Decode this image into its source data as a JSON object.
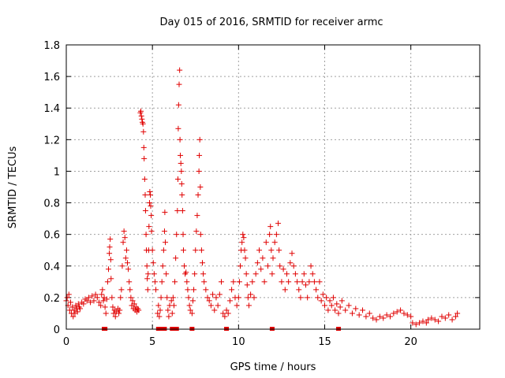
{
  "chart_data": {
    "type": "scatter",
    "title": "Day 015 of 2016, SRMTID for receiver armc",
    "xlabel": "GPS time / hours",
    "ylabel": "SRMTID / TECUs",
    "xlim": [
      0,
      24
    ],
    "ylim": [
      0,
      1.8
    ],
    "x_ticks": [
      "0",
      "5",
      "10",
      "15",
      "20"
    ],
    "y_ticks": [
      "0",
      "0.2",
      "0.4",
      "0.6",
      "0.8",
      "1",
      "1.2",
      "1.4",
      "1.6",
      "1.8"
    ],
    "grid": true,
    "marker": "+",
    "marker_color": "#e00000",
    "series": [
      {
        "name": "SRMTID",
        "points": [
          [
            0.0,
            0.18
          ],
          [
            0.05,
            0.2
          ],
          [
            0.1,
            0.15
          ],
          [
            0.15,
            0.22
          ],
          [
            0.2,
            0.12
          ],
          [
            0.25,
            0.17
          ],
          [
            0.3,
            0.1
          ],
          [
            0.35,
            0.14
          ],
          [
            0.4,
            0.08
          ],
          [
            0.45,
            0.12
          ],
          [
            0.5,
            0.1
          ],
          [
            0.55,
            0.15
          ],
          [
            0.6,
            0.13
          ],
          [
            0.65,
            0.11
          ],
          [
            0.7,
            0.16
          ],
          [
            0.75,
            0.14
          ],
          [
            0.8,
            0.13
          ],
          [
            0.9,
            0.17
          ],
          [
            1.0,
            0.16
          ],
          [
            1.1,
            0.19
          ],
          [
            1.2,
            0.18
          ],
          [
            1.3,
            0.2
          ],
          [
            1.4,
            0.17
          ],
          [
            1.5,
            0.21
          ],
          [
            1.6,
            0.18
          ],
          [
            1.7,
            0.22
          ],
          [
            1.8,
            0.2
          ],
          [
            1.9,
            0.17
          ],
          [
            2.0,
            0.15
          ],
          [
            2.05,
            0.22
          ],
          [
            2.1,
            0.25
          ],
          [
            2.15,
            0.18
          ],
          [
            2.2,
            0.2
          ],
          [
            2.25,
            0.14
          ],
          [
            2.3,
            0.1
          ],
          [
            2.35,
            0.19
          ],
          [
            2.4,
            0.3
          ],
          [
            2.45,
            0.38
          ],
          [
            2.5,
            0.48
          ],
          [
            2.52,
            0.52
          ],
          [
            2.55,
            0.57
          ],
          [
            2.58,
            0.44
          ],
          [
            2.6,
            0.32
          ],
          [
            2.65,
            0.2
          ],
          [
            2.7,
            0.14
          ],
          [
            2.75,
            0.1
          ],
          [
            2.8,
            0.12
          ],
          [
            2.85,
            0.08
          ],
          [
            2.9,
            0.11
          ],
          [
            3.0,
            0.13
          ],
          [
            3.05,
            0.1
          ],
          [
            3.1,
            0.12
          ],
          [
            3.15,
            0.2
          ],
          [
            3.2,
            0.25
          ],
          [
            3.25,
            0.4
          ],
          [
            3.3,
            0.55
          ],
          [
            3.35,
            0.62
          ],
          [
            3.4,
            0.58
          ],
          [
            3.45,
            0.45
          ],
          [
            3.5,
            0.5
          ],
          [
            3.55,
            0.42
          ],
          [
            3.6,
            0.38
          ],
          [
            3.65,
            0.3
          ],
          [
            3.7,
            0.25
          ],
          [
            3.75,
            0.2
          ],
          [
            3.8,
            0.15
          ],
          [
            3.85,
            0.18
          ],
          [
            3.9,
            0.13
          ],
          [
            3.95,
            0.16
          ],
          [
            4.0,
            0.12
          ],
          [
            4.05,
            0.14
          ],
          [
            4.1,
            0.11
          ],
          [
            4.15,
            0.13
          ],
          [
            4.2,
            0.12
          ],
          [
            4.3,
            1.37
          ],
          [
            4.33,
            1.38
          ],
          [
            4.36,
            1.35
          ],
          [
            4.39,
            1.33
          ],
          [
            4.42,
            1.31
          ],
          [
            4.45,
            1.3
          ],
          [
            4.48,
            1.25
          ],
          [
            4.5,
            1.15
          ],
          [
            4.52,
            1.08
          ],
          [
            4.55,
            0.95
          ],
          [
            4.58,
            0.85
          ],
          [
            4.6,
            0.75
          ],
          [
            4.63,
            0.6
          ],
          [
            4.65,
            0.5
          ],
          [
            4.68,
            0.4
          ],
          [
            4.7,
            0.32
          ],
          [
            4.73,
            0.25
          ],
          [
            4.75,
            0.35
          ],
          [
            4.78,
            0.5
          ],
          [
            4.8,
            0.65
          ],
          [
            4.83,
            0.8
          ],
          [
            4.85,
            0.87
          ],
          [
            4.88,
            0.85
          ],
          [
            4.9,
            0.78
          ],
          [
            4.93,
            0.72
          ],
          [
            4.95,
            0.62
          ],
          [
            5.0,
            0.5
          ],
          [
            5.05,
            0.42
          ],
          [
            5.1,
            0.35
          ],
          [
            5.15,
            0.3
          ],
          [
            5.2,
            0.25
          ],
          [
            5.3,
            0.1
          ],
          [
            5.35,
            0.15
          ],
          [
            5.4,
            0.08
          ],
          [
            5.45,
            0.12
          ],
          [
            5.5,
            0.2
          ],
          [
            5.55,
            0.3
          ],
          [
            5.6,
            0.4
          ],
          [
            5.65,
            0.5
          ],
          [
            5.7,
            0.62
          ],
          [
            5.72,
            0.74
          ],
          [
            5.75,
            0.55
          ],
          [
            5.8,
            0.35
          ],
          [
            5.85,
            0.2
          ],
          [
            5.9,
            0.12
          ],
          [
            5.95,
            0.08
          ],
          [
            6.0,
            0.15
          ],
          [
            6.1,
            0.18
          ],
          [
            6.15,
            0.1
          ],
          [
            6.2,
            0.2
          ],
          [
            6.25,
            0.15
          ],
          [
            6.3,
            0.3
          ],
          [
            6.35,
            0.45
          ],
          [
            6.4,
            0.6
          ],
          [
            6.45,
            0.75
          ],
          [
            6.48,
            0.95
          ],
          [
            6.5,
            1.27
          ],
          [
            6.52,
            1.42
          ],
          [
            6.55,
            1.55
          ],
          [
            6.58,
            1.64
          ],
          [
            6.6,
            1.2
          ],
          [
            6.62,
            1.1
          ],
          [
            6.65,
            1.05
          ],
          [
            6.68,
            1.0
          ],
          [
            6.7,
            0.92
          ],
          [
            6.72,
            0.85
          ],
          [
            6.75,
            0.75
          ],
          [
            6.78,
            0.6
          ],
          [
            6.8,
            0.5
          ],
          [
            6.85,
            0.4
          ],
          [
            6.9,
            0.35
          ],
          [
            6.95,
            0.36
          ],
          [
            7.0,
            0.3
          ],
          [
            7.05,
            0.25
          ],
          [
            7.1,
            0.2
          ],
          [
            7.15,
            0.15
          ],
          [
            7.2,
            0.12
          ],
          [
            7.3,
            0.1
          ],
          [
            7.35,
            0.18
          ],
          [
            7.4,
            0.25
          ],
          [
            7.45,
            0.35
          ],
          [
            7.5,
            0.5
          ],
          [
            7.55,
            0.62
          ],
          [
            7.6,
            0.72
          ],
          [
            7.65,
            0.85
          ],
          [
            7.7,
            1.0
          ],
          [
            7.72,
            1.1
          ],
          [
            7.75,
            1.2
          ],
          [
            7.78,
            0.9
          ],
          [
            7.8,
            0.6
          ],
          [
            7.85,
            0.5
          ],
          [
            7.9,
            0.42
          ],
          [
            7.95,
            0.35
          ],
          [
            8.0,
            0.3
          ],
          [
            8.1,
            0.25
          ],
          [
            8.2,
            0.2
          ],
          [
            8.3,
            0.18
          ],
          [
            8.4,
            0.15
          ],
          [
            8.5,
            0.22
          ],
          [
            8.6,
            0.12
          ],
          [
            8.7,
            0.2
          ],
          [
            8.8,
            0.15
          ],
          [
            8.9,
            0.22
          ],
          [
            9.0,
            0.3
          ],
          [
            9.1,
            0.1
          ],
          [
            9.2,
            0.08
          ],
          [
            9.3,
            0.12
          ],
          [
            9.4,
            0.1
          ],
          [
            9.5,
            0.18
          ],
          [
            9.6,
            0.25
          ],
          [
            9.7,
            0.3
          ],
          [
            9.8,
            0.2
          ],
          [
            9.9,
            0.15
          ],
          [
            10.0,
            0.2
          ],
          [
            10.05,
            0.3
          ],
          [
            10.1,
            0.4
          ],
          [
            10.15,
            0.5
          ],
          [
            10.2,
            0.55
          ],
          [
            10.25,
            0.6
          ],
          [
            10.3,
            0.58
          ],
          [
            10.35,
            0.5
          ],
          [
            10.4,
            0.45
          ],
          [
            10.45,
            0.35
          ],
          [
            10.5,
            0.28
          ],
          [
            10.55,
            0.2
          ],
          [
            10.6,
            0.15
          ],
          [
            10.7,
            0.22
          ],
          [
            10.8,
            0.3
          ],
          [
            10.9,
            0.2
          ],
          [
            11.0,
            0.35
          ],
          [
            11.1,
            0.42
          ],
          [
            11.2,
            0.5
          ],
          [
            11.3,
            0.38
          ],
          [
            11.4,
            0.45
          ],
          [
            11.5,
            0.3
          ],
          [
            11.6,
            0.55
          ],
          [
            11.7,
            0.4
          ],
          [
            11.8,
            0.6
          ],
          [
            11.85,
            0.65
          ],
          [
            11.9,
            0.5
          ],
          [
            11.95,
            0.35
          ],
          [
            12.0,
            0.45
          ],
          [
            12.1,
            0.55
          ],
          [
            12.2,
            0.6
          ],
          [
            12.3,
            0.67
          ],
          [
            12.35,
            0.5
          ],
          [
            12.4,
            0.4
          ],
          [
            12.5,
            0.3
          ],
          [
            12.6,
            0.38
          ],
          [
            12.7,
            0.25
          ],
          [
            12.8,
            0.35
          ],
          [
            12.9,
            0.3
          ],
          [
            13.0,
            0.42
          ],
          [
            13.1,
            0.48
          ],
          [
            13.2,
            0.4
          ],
          [
            13.3,
            0.35
          ],
          [
            13.4,
            0.3
          ],
          [
            13.5,
            0.25
          ],
          [
            13.6,
            0.2
          ],
          [
            13.7,
            0.3
          ],
          [
            13.8,
            0.35
          ],
          [
            13.9,
            0.28
          ],
          [
            14.0,
            0.2
          ],
          [
            14.1,
            0.3
          ],
          [
            14.2,
            0.4
          ],
          [
            14.3,
            0.35
          ],
          [
            14.4,
            0.3
          ],
          [
            14.5,
            0.25
          ],
          [
            14.6,
            0.2
          ],
          [
            14.7,
            0.3
          ],
          [
            14.8,
            0.18
          ],
          [
            14.9,
            0.22
          ],
          [
            15.0,
            0.15
          ],
          [
            15.1,
            0.2
          ],
          [
            15.2,
            0.12
          ],
          [
            15.3,
            0.18
          ],
          [
            15.4,
            0.15
          ],
          [
            15.5,
            0.2
          ],
          [
            15.6,
            0.12
          ],
          [
            15.7,
            0.16
          ],
          [
            15.8,
            0.1
          ],
          [
            15.9,
            0.14
          ],
          [
            16.0,
            0.18
          ],
          [
            16.2,
            0.12
          ],
          [
            16.4,
            0.15
          ],
          [
            16.6,
            0.1
          ],
          [
            16.8,
            0.13
          ],
          [
            17.0,
            0.09
          ],
          [
            17.2,
            0.12
          ],
          [
            17.4,
            0.08
          ],
          [
            17.6,
            0.1
          ],
          [
            17.8,
            0.07
          ],
          [
            18.0,
            0.06
          ],
          [
            18.2,
            0.08
          ],
          [
            18.4,
            0.07
          ],
          [
            18.6,
            0.09
          ],
          [
            18.8,
            0.08
          ],
          [
            19.0,
            0.1
          ],
          [
            19.2,
            0.11
          ],
          [
            19.4,
            0.12
          ],
          [
            19.6,
            0.1
          ],
          [
            19.8,
            0.09
          ],
          [
            20.0,
            0.08
          ],
          [
            20.1,
            0.04
          ],
          [
            20.3,
            0.03
          ],
          [
            20.5,
            0.04
          ],
          [
            20.7,
            0.05
          ],
          [
            20.9,
            0.04
          ],
          [
            21.0,
            0.06
          ],
          [
            21.2,
            0.07
          ],
          [
            21.4,
            0.06
          ],
          [
            21.6,
            0.05
          ],
          [
            21.8,
            0.08
          ],
          [
            22.0,
            0.07
          ],
          [
            22.2,
            0.09
          ],
          [
            22.4,
            0.06
          ],
          [
            22.6,
            0.08
          ],
          [
            22.7,
            0.1
          ]
        ]
      }
    ],
    "zero_markers": [
      2.2,
      2.25,
      5.35,
      5.45,
      5.7,
      6.15,
      6.4,
      7.3,
      9.3,
      11.95,
      15.8
    ]
  }
}
